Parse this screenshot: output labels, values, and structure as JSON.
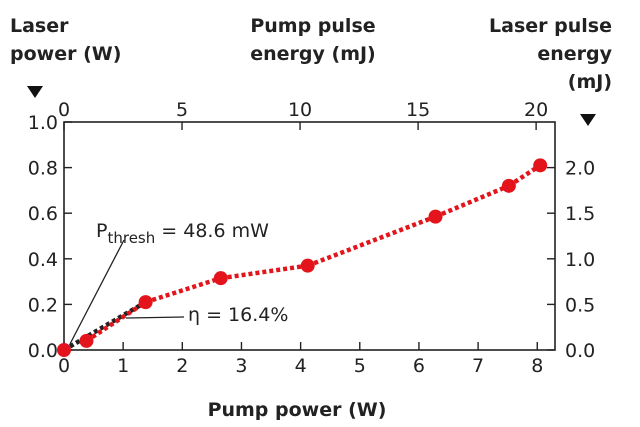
{
  "chart_data": {
    "type": "line",
    "title": "",
    "xlabel": "Pump power (W)",
    "x_top_label": [
      "Pump pulse",
      "energy (mJ)"
    ],
    "ylabel_left": [
      "Laser",
      "power (W)"
    ],
    "ylabel_right": [
      "Laser pulse",
      "energy",
      "(mJ)"
    ],
    "xlim": [
      0,
      8.3
    ],
    "ylim_left": [
      0,
      1.0
    ],
    "x_top_lim": [
      0,
      20.8
    ],
    "ylim_right": [
      0,
      2.5
    ],
    "x_ticks": [
      "0",
      "1",
      "2",
      "3",
      "4",
      "5",
      "6",
      "7",
      "8"
    ],
    "x_top_ticks": [
      "0",
      "5",
      "10",
      "15",
      "20"
    ],
    "y_left_ticks": [
      "0.0",
      "0.2",
      "0.4",
      "0.6",
      "0.8",
      "1.0"
    ],
    "y_right_ticks": [
      "0.0",
      "0.5",
      "1.0",
      "1.5",
      "2.0"
    ],
    "series": [
      {
        "color": "#e3141b",
        "x": [
          0.0,
          0.38,
          1.38,
          2.65,
          4.12,
          6.28,
          7.52,
          8.05
        ],
        "y": [
          0.0,
          0.04,
          0.21,
          0.315,
          0.37,
          0.585,
          0.72,
          0.81
        ]
      }
    ],
    "fit_line": {
      "color": "#222222",
      "x": [
        0.0,
        1.38
      ],
      "y": [
        0.0,
        0.21
      ]
    },
    "annotations": {
      "threshold_prefix": "P",
      "threshold_sub": "thresh",
      "threshold_rest": " = 48.6 mW",
      "slope": "η = 16.4%"
    },
    "grid": false
  }
}
